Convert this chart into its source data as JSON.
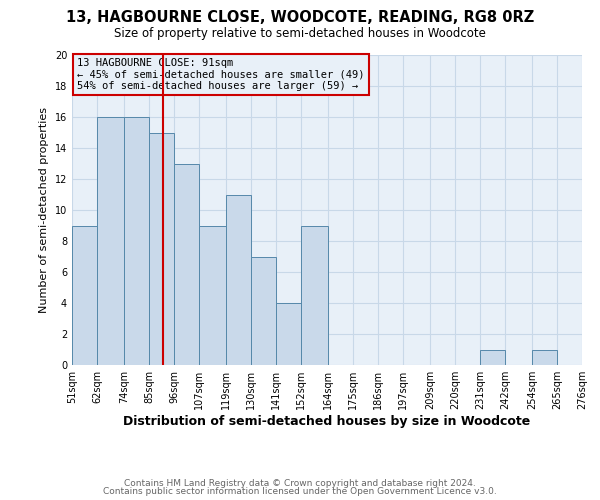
{
  "title": "13, HAGBOURNE CLOSE, WOODCOTE, READING, RG8 0RZ",
  "subtitle": "Size of property relative to semi-detached houses in Woodcote",
  "xlabel": "Distribution of semi-detached houses by size in Woodcote",
  "ylabel": "Number of semi-detached properties",
  "footer_line1": "Contains HM Land Registry data © Crown copyright and database right 2024.",
  "footer_line2": "Contains public sector information licensed under the Open Government Licence v3.0.",
  "annotation_line1": "13 HAGBOURNE CLOSE: 91sqm",
  "annotation_line2": "← 45% of semi-detached houses are smaller (49)",
  "annotation_line3": "54% of semi-detached houses are larger (59) →",
  "bin_edges": [
    51,
    62,
    74,
    85,
    96,
    107,
    119,
    130,
    141,
    152,
    164,
    175,
    186,
    197,
    209,
    220,
    231,
    242,
    254,
    265,
    276
  ],
  "bin_labels": [
    "51sqm",
    "62sqm",
    "74sqm",
    "85sqm",
    "96sqm",
    "107sqm",
    "119sqm",
    "130sqm",
    "141sqm",
    "152sqm",
    "164sqm",
    "175sqm",
    "186sqm",
    "197sqm",
    "209sqm",
    "220sqm",
    "231sqm",
    "242sqm",
    "254sqm",
    "265sqm",
    "276sqm"
  ],
  "counts": [
    9,
    16,
    16,
    15,
    13,
    9,
    11,
    7,
    4,
    9,
    0,
    0,
    0,
    0,
    0,
    0,
    1,
    0,
    1,
    0
  ],
  "bar_color": "#c9d9ea",
  "bar_edge_color": "#5588aa",
  "vline_x": 91,
  "vline_color": "#cc0000",
  "annotation_box_edge_color": "#cc0000",
  "ylim": [
    0,
    20
  ],
  "yticks": [
    0,
    2,
    4,
    6,
    8,
    10,
    12,
    14,
    16,
    18,
    20
  ],
  "grid_color": "#c8d8e8",
  "bg_color": "#ffffff",
  "plot_bg_color": "#e8f0f8"
}
